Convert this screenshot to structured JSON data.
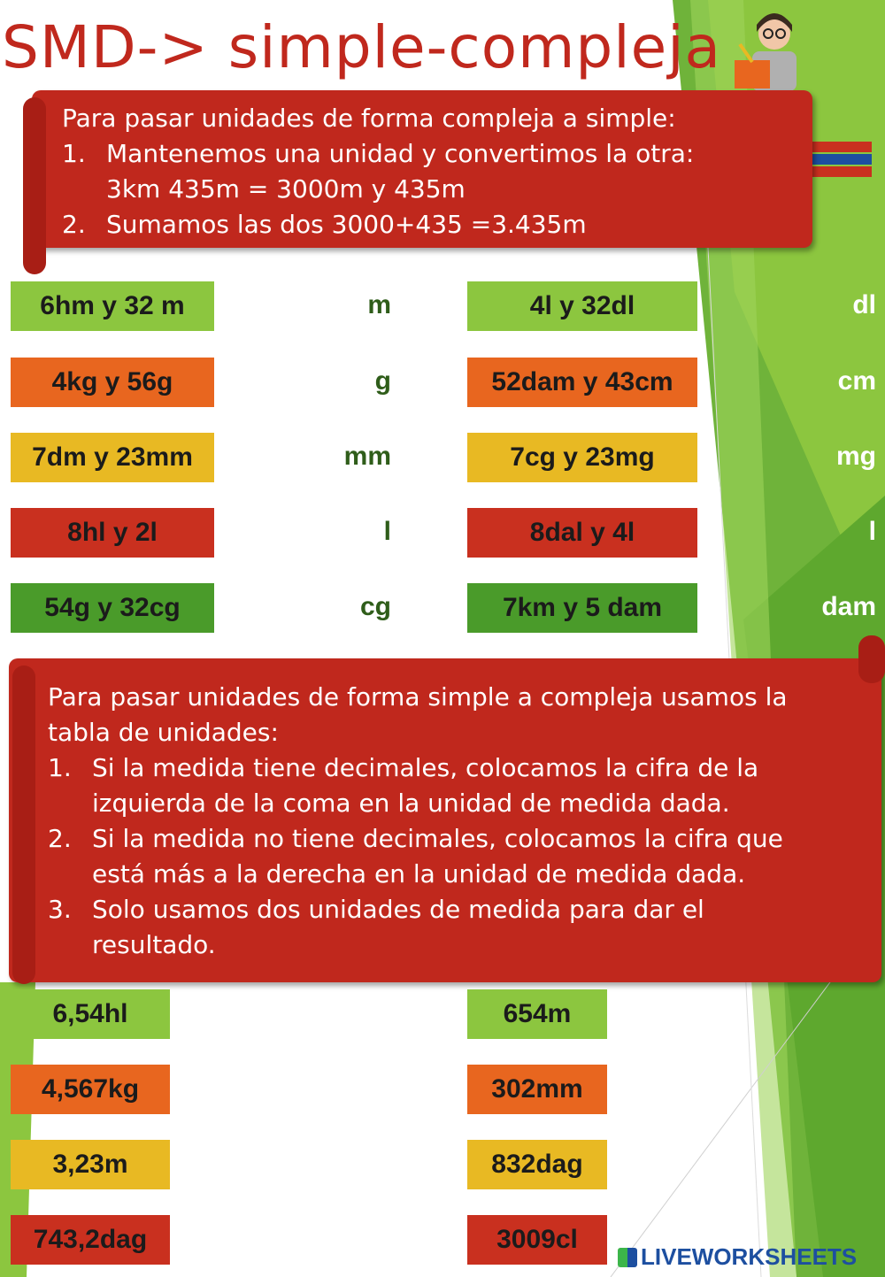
{
  "title": "SMD-> simple-compleja",
  "box1": {
    "lines": [
      "Para pasar unidades de forma compleja a simple:",
      "Mantenemos una unidad y convertimos la otra:",
      "3km 435m = 3000m y 435m",
      "Sumamos las dos 3000+435 =3.435m"
    ],
    "nums": [
      "1.",
      "2."
    ]
  },
  "set1": [
    {
      "left": "6hm y 32 m",
      "left_unit": "m",
      "right": "4l y 32dl",
      "right_unit": "dl",
      "color": "#8cc63f"
    },
    {
      "left": "4kg y 56g",
      "left_unit": "g",
      "right": "52dam y 43cm",
      "right_unit": "cm",
      "color": "#e8661f"
    },
    {
      "left": "7dm y 23mm",
      "left_unit": "mm",
      "right": "7cg y 23mg",
      "right_unit": "mg",
      "color": "#e8b923"
    },
    {
      "left": "8hl y 2l",
      "left_unit": "l",
      "right": "8dal y 4l",
      "right_unit": "l",
      "color": "#c9301f"
    },
    {
      "left": "54g y 32cg",
      "left_unit": "cg",
      "right": "7km y 5 dam",
      "right_unit": "dam",
      "color": "#4a9b2a"
    }
  ],
  "box2": {
    "lines": [
      "Para pasar unidades de forma simple a compleja usamos la",
      "tabla de unidades:",
      "Si la medida tiene decimales, colocamos la cifra de la",
      "izquierda de la coma en la unidad de medida dada.",
      "Si la medida no tiene decimales, colocamos la cifra que",
      "está más a la derecha en la unidad de medida dada.",
      "Solo usamos dos unidades de medida para dar el",
      "resultado."
    ],
    "nums": [
      "1.",
      "2.",
      "3."
    ]
  },
  "set2": [
    {
      "left": "6,54hl",
      "right": "654m",
      "color": "#8cc63f"
    },
    {
      "left": "4,567kg",
      "right": "302mm",
      "color": "#e8661f"
    },
    {
      "left": "3,23m",
      "right": "832dag",
      "color": "#e8b923"
    },
    {
      "left": "743,2dag",
      "right": "3009cl",
      "color": "#c9301f"
    }
  ],
  "logo_text": "LIVEWORKSHEETS"
}
